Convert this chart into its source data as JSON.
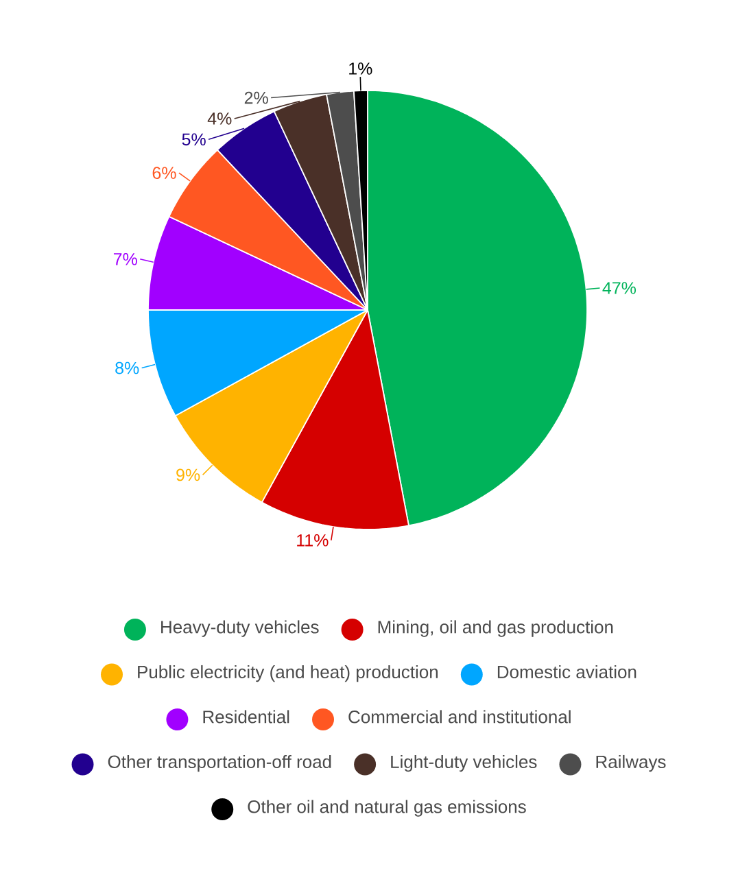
{
  "chart_data": {
    "type": "pie",
    "categories": [
      "Heavy-duty vehicles",
      "Mining, oil and gas production",
      "Public electricity (and heat) production",
      "Domestic aviation",
      "Residential",
      "Commercial and institutional",
      "Other transportation-off road",
      "Light-duty vehicles",
      "Railways",
      "Other oil and natural gas emissions"
    ],
    "values": [
      47,
      11,
      9,
      8,
      7,
      6,
      5,
      4,
      2,
      1
    ],
    "colors": [
      "#00b35a",
      "#d50000",
      "#ffb300",
      "#00a6ff",
      "#a100ff",
      "#ff5722",
      "#22008f",
      "#4a3028",
      "#4d4d4d",
      "#000000"
    ],
    "value_labels": [
      "47%",
      "11%",
      "9%",
      "8%",
      "7%",
      "6%",
      "5%",
      "4%",
      "2%",
      "1%"
    ],
    "legend": "bottom"
  }
}
